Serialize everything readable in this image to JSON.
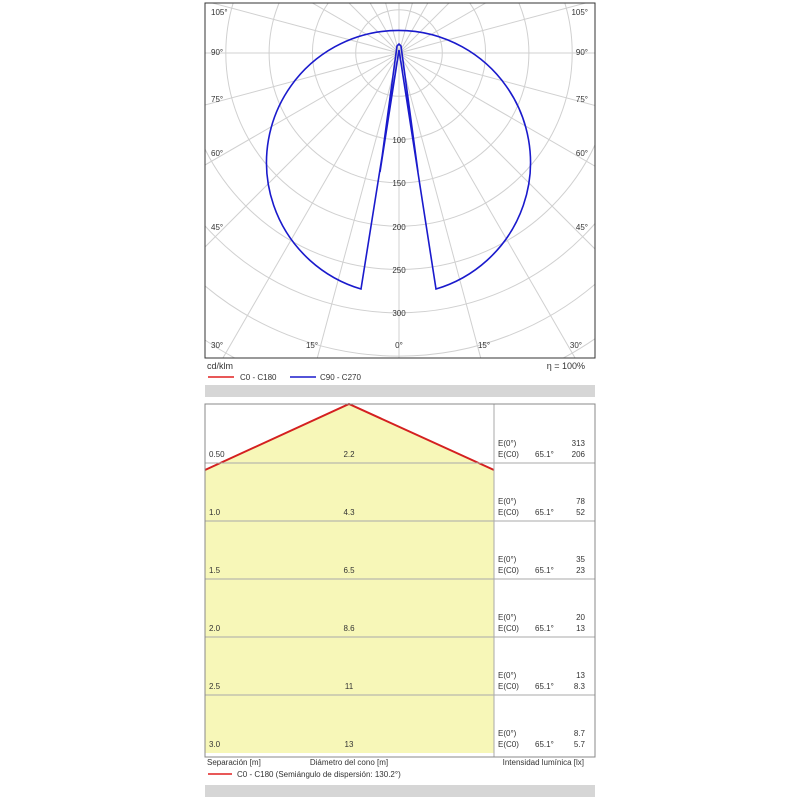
{
  "polar": {
    "angle_labels_left": [
      "105°",
      "90°",
      "75°",
      "60°",
      "45°",
      "30°"
    ],
    "angle_labels_right": [
      "105°",
      "90°",
      "75°",
      "60°",
      "45°",
      "30°"
    ],
    "angle_labels_bottom": [
      "15°",
      "0°",
      "15°"
    ],
    "radial_labels": [
      "100",
      "150",
      "200",
      "250",
      "300"
    ],
    "unit": "cd/klm",
    "efficiency": "η = 100%",
    "legend": [
      "C0 - C180",
      "C90 - C270"
    ]
  },
  "cone": {
    "rows": [
      {
        "height": "0.50",
        "diameter": "2.2",
        "e0_label": "E(0°)",
        "e0": "313",
        "ec0_label": "E(C0)",
        "angle": "65.1°",
        "ec0": "206"
      },
      {
        "height": "1.0",
        "diameter": "4.3",
        "e0_label": "E(0°)",
        "e0": "78",
        "ec0_label": "E(C0)",
        "angle": "65.1°",
        "ec0": "52"
      },
      {
        "height": "1.5",
        "diameter": "6.5",
        "e0_label": "E(0°)",
        "e0": "35",
        "ec0_label": "E(C0)",
        "angle": "65.1°",
        "ec0": "23"
      },
      {
        "height": "2.0",
        "diameter": "8.6",
        "e0_label": "E(0°)",
        "e0": "20",
        "ec0_label": "E(C0)",
        "angle": "65.1°",
        "ec0": "13"
      },
      {
        "height": "2.5",
        "diameter": "11",
        "e0_label": "E(0°)",
        "e0": "13",
        "ec0_label": "E(C0)",
        "angle": "65.1°",
        "ec0": "8.3"
      },
      {
        "height": "3.0",
        "diameter": "13",
        "e0_label": "E(0°)",
        "e0": "8.7",
        "ec0_label": "E(C0)",
        "angle": "65.1°",
        "ec0": "5.7"
      }
    ],
    "footer": {
      "separation": "Separación [m]",
      "diameter": "Diámetro del cono [m]",
      "intensity": "Intensidad lumínica [lx]"
    },
    "legend": "C0 - C180 (Semiángulo de dispersión: 130.2°)"
  }
}
